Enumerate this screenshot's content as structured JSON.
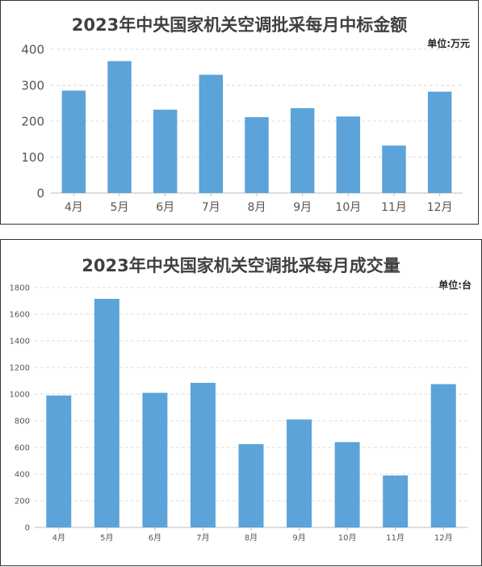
{
  "chart_data": [
    {
      "type": "bar",
      "title": "2023年中央国家机关空调批采每月中标金额",
      "unit_label": "单位:万元",
      "categories": [
        "4月",
        "5月",
        "6月",
        "7月",
        "8月",
        "9月",
        "10月",
        "11月",
        "12月"
      ],
      "values": [
        285,
        367,
        232,
        329,
        211,
        236,
        213,
        132,
        282
      ],
      "ylim": [
        0,
        400
      ],
      "yticks": [
        "0",
        "100",
        "200",
        "300",
        "400"
      ],
      "grid": true,
      "bar_color": "#5ba3d9"
    },
    {
      "type": "bar",
      "title": "2023年中央国家机关空调批采每月成交量",
      "unit_label": "单位:台",
      "categories": [
        "4月",
        "5月",
        "6月",
        "7月",
        "8月",
        "9月",
        "10月",
        "11月",
        "12月"
      ],
      "values": [
        990,
        1715,
        1010,
        1085,
        625,
        810,
        640,
        390,
        1075
      ],
      "ylim": [
        0,
        1800
      ],
      "yticks": [
        "0",
        "200",
        "400",
        "600",
        "800",
        "1000",
        "1200",
        "1400",
        "1600",
        "1800"
      ],
      "grid": true,
      "bar_color": "#5ba3d9"
    }
  ]
}
